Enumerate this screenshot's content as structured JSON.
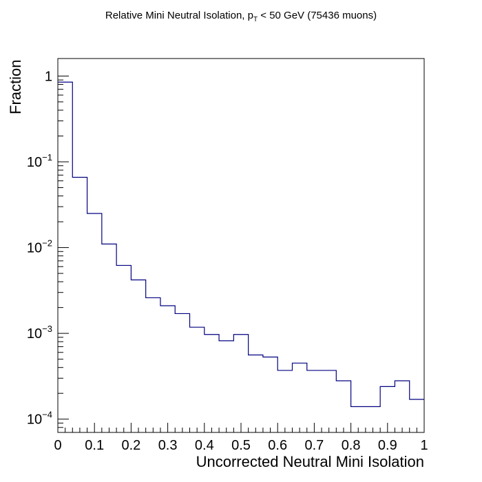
{
  "chart_data": {
    "type": "histogram",
    "title": "Relative Mini Neutral Isolation, p",
    "title_sub": "T",
    "title_rest": " < 50 GeV (75436 muons)",
    "xlabel": "Uncorrected Neutral Mini Isolation",
    "ylabel": "Fraction",
    "xlim": [
      0,
      1
    ],
    "ylim": [
      7e-05,
      1.6
    ],
    "yscale": "log",
    "x_ticks": [
      "0",
      "0.1",
      "0.2",
      "0.3",
      "0.4",
      "0.5",
      "0.6",
      "0.7",
      "0.8",
      "0.9",
      "1"
    ],
    "y_ticks": [
      {
        "value": 1,
        "base": "1",
        "exp": ""
      },
      {
        "value": 0.1,
        "base": "10",
        "exp": "−1"
      },
      {
        "value": 0.01,
        "base": "10",
        "exp": "−2"
      },
      {
        "value": 0.001,
        "base": "10",
        "exp": "−3"
      },
      {
        "value": 0.0001,
        "base": "10",
        "exp": "−4"
      }
    ],
    "line_color": "#000080",
    "bin_edges": [
      0,
      0.04,
      0.08,
      0.12,
      0.16,
      0.2,
      0.24,
      0.28,
      0.32,
      0.36,
      0.4,
      0.44,
      0.48,
      0.52,
      0.56,
      0.6,
      0.64,
      0.68,
      0.72,
      0.76,
      0.8,
      0.84,
      0.88,
      0.92,
      0.96,
      1.0
    ],
    "values": [
      0.85,
      0.066,
      0.025,
      0.011,
      0.0062,
      0.0042,
      0.0026,
      0.0021,
      0.0017,
      0.00118,
      0.00097,
      0.00082,
      0.00097,
      0.00056,
      0.00053,
      0.00037,
      0.00045,
      0.00037,
      0.00037,
      0.00028,
      0.00014,
      0.00014,
      0.00024,
      0.00028,
      0.00017
    ]
  }
}
